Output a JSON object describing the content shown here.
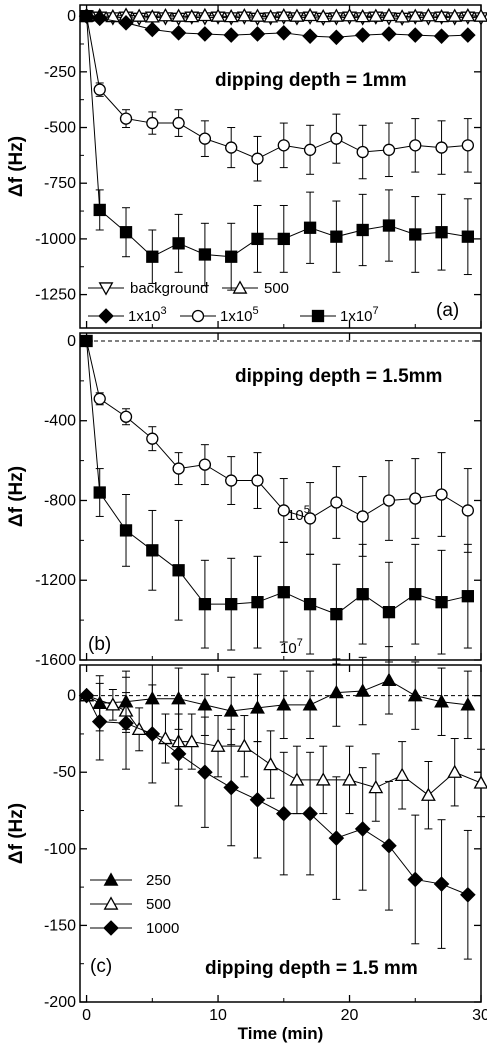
{
  "chart_data": [
    {
      "type": "line",
      "panel_label": "(a)",
      "annotation": "dipping depth = 1mm",
      "ylabel": "Δf (Hz)",
      "xlim": [
        -0.5,
        30
      ],
      "ylim": [
        -1400,
        50
      ],
      "yticks": [
        0,
        -250,
        -500,
        -750,
        -1000,
        -1250
      ],
      "reference_line": 0,
      "legend_rows": [
        [
          "background",
          "500"
        ],
        [
          "1x10^3",
          "1x10^5",
          "1x10^7"
        ]
      ],
      "series": [
        {
          "name": "background",
          "marker": "triangle-down-open",
          "x": [
            0,
            1,
            2,
            3,
            4,
            5,
            6,
            7,
            8,
            9,
            10,
            11,
            12,
            13,
            14,
            15,
            16,
            17,
            18,
            19,
            20,
            21,
            22,
            23,
            24,
            25,
            26,
            27,
            28,
            29,
            30
          ],
          "y": [
            0,
            -5,
            -8,
            -5,
            -10,
            -5,
            -8,
            -10,
            -5,
            -8,
            -5,
            -8,
            -5,
            -10,
            -8,
            -5,
            -8,
            -5,
            -10,
            -8,
            -5,
            -8,
            -5,
            -8,
            -10,
            -5,
            -8,
            -5,
            -8,
            -5,
            -8
          ]
        },
        {
          "name": "500",
          "marker": "triangle-up-open",
          "x": [
            0,
            1,
            2,
            3,
            4,
            5,
            6,
            7,
            8,
            9,
            10,
            11,
            12,
            13,
            14,
            15,
            16,
            17,
            18,
            19,
            20,
            21,
            22,
            23,
            24,
            25,
            26,
            27,
            28,
            29,
            30
          ],
          "y": [
            0,
            2,
            -2,
            5,
            0,
            -3,
            2,
            0,
            -2,
            3,
            0,
            -2,
            2,
            0,
            -3,
            2,
            0,
            3,
            -2,
            0,
            2,
            -2,
            0,
            3,
            -3,
            0,
            2,
            -2,
            0,
            2,
            0
          ]
        },
        {
          "name": "1x10^3",
          "marker": "diamond-filled",
          "x": [
            0,
            1,
            3,
            5,
            7,
            9,
            11,
            13,
            15,
            17,
            19,
            21,
            23,
            25,
            27,
            29
          ],
          "y": [
            0,
            -10,
            -30,
            -60,
            -75,
            -80,
            -85,
            -80,
            -75,
            -90,
            -95,
            -85,
            -80,
            -85,
            -90,
            -85
          ]
        },
        {
          "name": "1x10^5",
          "marker": "circle-open",
          "x": [
            0,
            1,
            3,
            5,
            7,
            9,
            11,
            13,
            15,
            17,
            19,
            21,
            23,
            25,
            27,
            29
          ],
          "y": [
            0,
            -330,
            -460,
            -480,
            -480,
            -550,
            -590,
            -640,
            -580,
            -600,
            -550,
            -610,
            -600,
            -580,
            -590,
            -580
          ],
          "err": [
            0,
            30,
            40,
            50,
            60,
            80,
            90,
            100,
            100,
            110,
            110,
            120,
            120,
            120,
            120,
            120
          ]
        },
        {
          "name": "1x10^7",
          "marker": "square-filled",
          "x": [
            0,
            1,
            3,
            5,
            7,
            9,
            11,
            13,
            15,
            17,
            19,
            21,
            23,
            25,
            27,
            29
          ],
          "y": [
            0,
            -870,
            -970,
            -1080,
            -1020,
            -1070,
            -1080,
            -1000,
            -1000,
            -950,
            -990,
            -960,
            -940,
            -980,
            -970,
            -990
          ],
          "err": [
            0,
            90,
            110,
            120,
            130,
            140,
            150,
            150,
            150,
            160,
            160,
            160,
            160,
            170,
            170,
            170
          ]
        }
      ]
    },
    {
      "type": "line",
      "panel_label": "(b)",
      "annotation": "dipping depth = 1.5mm",
      "ylabel": "Δf (Hz)",
      "xlim": [
        -0.5,
        30
      ],
      "ylim": [
        -1600,
        40
      ],
      "yticks": [
        0,
        -400,
        -800,
        -1200,
        -1600
      ],
      "reference_line": 0,
      "curve_labels": [
        {
          "text": "10^5",
          "x": 16,
          "y": -700
        },
        {
          "text": "10^7",
          "x": 16,
          "y": -1590
        }
      ],
      "series": [
        {
          "name": "10^5",
          "marker": "circle-open",
          "x": [
            0,
            1,
            3,
            5,
            7,
            9,
            11,
            13,
            15,
            17,
            19,
            21,
            23,
            25,
            27,
            29
          ],
          "y": [
            0,
            -290,
            -380,
            -490,
            -640,
            -620,
            -700,
            -700,
            -850,
            -890,
            -810,
            -880,
            -800,
            -790,
            -770,
            -850
          ],
          "err": [
            0,
            30,
            40,
            60,
            80,
            100,
            120,
            140,
            160,
            180,
            180,
            200,
            200,
            200,
            210,
            210
          ]
        },
        {
          "name": "10^7",
          "marker": "square-filled",
          "x": [
            0,
            1,
            3,
            5,
            7,
            9,
            11,
            13,
            15,
            17,
            19,
            21,
            23,
            25,
            27,
            29
          ],
          "y": [
            0,
            -760,
            -950,
            -1050,
            -1150,
            -1320,
            -1320,
            -1310,
            -1260,
            -1320,
            -1370,
            -1270,
            -1360,
            -1270,
            -1310,
            -1280
          ],
          "err": [
            0,
            120,
            180,
            200,
            250,
            220,
            230,
            230,
            250,
            250,
            250,
            250,
            250,
            250,
            260,
            260
          ]
        }
      ]
    },
    {
      "type": "line",
      "panel_label": "(c)",
      "annotation": "dipping depth = 1.5 mm",
      "ylabel": "Δf (Hz)",
      "xlabel": "Time (min)",
      "xlim": [
        -0.5,
        30
      ],
      "ylim": [
        -200,
        20
      ],
      "yticks": [
        0,
        -50,
        -100,
        -150,
        -200
      ],
      "xticks": [
        0,
        10,
        20,
        30
      ],
      "reference_line": 0,
      "series": [
        {
          "name": "250",
          "marker": "triangle-up-filled",
          "x": [
            0,
            1,
            3,
            5,
            7,
            9,
            11,
            13,
            15,
            17,
            19,
            21,
            23,
            25,
            27,
            29
          ],
          "y": [
            0,
            -5,
            -4,
            -2,
            -2,
            -6,
            -10,
            -8,
            -6,
            -6,
            2,
            3,
            10,
            0,
            -4,
            -6
          ],
          "err": [
            0,
            18,
            20,
            22,
            20,
            20,
            22,
            22,
            22,
            22,
            22,
            22,
            22,
            22,
            22,
            22
          ]
        },
        {
          "name": "500",
          "marker": "triangle-up-open",
          "x": [
            0,
            2,
            3,
            4,
            6,
            7,
            8,
            10,
            12,
            14,
            16,
            18,
            20,
            22,
            24,
            26,
            28,
            30
          ],
          "y": [
            0,
            -6,
            -10,
            -22,
            -28,
            -30,
            -30,
            -33,
            -33,
            -45,
            -55,
            -55,
            -55,
            -60,
            -52,
            -65,
            -50,
            -57
          ],
          "err": [
            0,
            10,
            12,
            14,
            16,
            18,
            18,
            20,
            20,
            22,
            22,
            22,
            22,
            22,
            22,
            22,
            22,
            22
          ]
        },
        {
          "name": "1000",
          "marker": "diamond-filled",
          "x": [
            0,
            1,
            3,
            5,
            7,
            9,
            11,
            13,
            15,
            17,
            19,
            21,
            23,
            25,
            27,
            29
          ],
          "y": [
            0,
            -17,
            -18,
            -25,
            -38,
            -50,
            -60,
            -68,
            -77,
            -77,
            -93,
            -87,
            -98,
            -120,
            -123,
            -130
          ],
          "err": [
            0,
            25,
            30,
            32,
            34,
            36,
            38,
            38,
            40,
            40,
            40,
            40,
            42,
            42,
            42,
            42
          ]
        }
      ]
    }
  ]
}
